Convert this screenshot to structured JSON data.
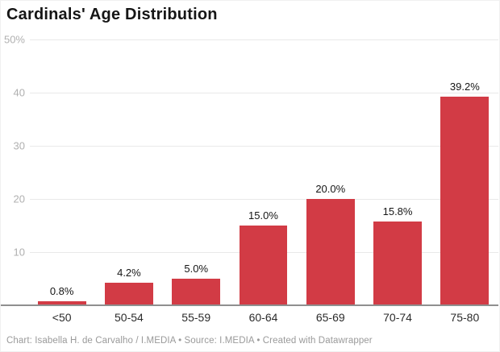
{
  "title": "Cardinals' Age Distribution",
  "footer": "Chart: Isabella H. de Carvalho / I.MEDIA • Source: I.MEDIA • Created with Datawrapper",
  "colors": {
    "bar": "#d23b45",
    "gridline": "#e9e9e9",
    "axis_line": "#8f8f8f",
    "title_text": "#161616",
    "y_tick_text": "#b0b0b0",
    "x_tick_text": "#2b2b2b",
    "value_label_text": "#161616",
    "footer_text": "#9a9a9a"
  },
  "chart_data": {
    "type": "bar",
    "title": "Cardinals' Age Distribution",
    "categories": [
      "<50",
      "50-54",
      "55-59",
      "60-64",
      "65-69",
      "70-74",
      "75-80"
    ],
    "values": [
      0.8,
      4.2,
      5.0,
      15.0,
      20.0,
      15.8,
      39.2
    ],
    "value_labels": [
      "0.8%",
      "4.2%",
      "5.0%",
      "15.0%",
      "20.0%",
      "15.8%",
      "39.2%"
    ],
    "xlabel": "",
    "ylabel": "",
    "ylim": [
      0,
      50
    ],
    "yticks": [
      {
        "value": 10,
        "label": "10"
      },
      {
        "value": 20,
        "label": "20"
      },
      {
        "value": 30,
        "label": "30"
      },
      {
        "value": 40,
        "label": "40"
      },
      {
        "value": 50,
        "label": "50%"
      }
    ],
    "grid": true,
    "legend_position": "none",
    "bar_orientation": "vertical"
  }
}
